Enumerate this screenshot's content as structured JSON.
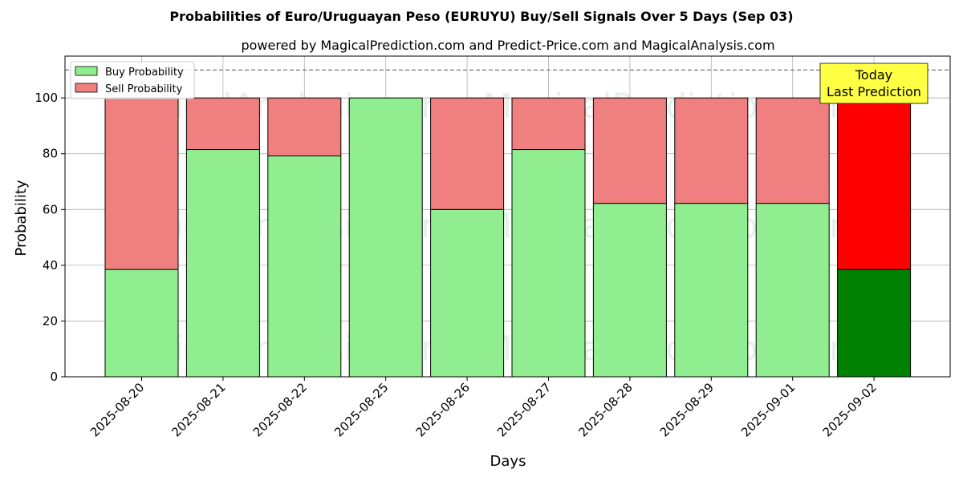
{
  "chart_data": {
    "type": "bar",
    "stacked": true,
    "title": "Probabilities of Euro/Uruguayan Peso (EURUYU) Buy/Sell Signals Over 5 Days (Sep 03)",
    "subtitle": "powered by MagicalPrediction.com and Predict-Price.com and MagicalAnalysis.com",
    "xlabel": "Days",
    "ylabel": "Probability",
    "ylim": [
      0,
      115
    ],
    "yticks": [
      0,
      20,
      40,
      60,
      80,
      100
    ],
    "reference_line": 110,
    "grid": true,
    "legend_position": "top-left",
    "categories": [
      "2025-08-20",
      "2025-08-21",
      "2025-08-22",
      "2025-08-25",
      "2025-08-26",
      "2025-08-27",
      "2025-08-28",
      "2025-08-29",
      "2025-09-01",
      "2025-09-02"
    ],
    "series": [
      {
        "name": "Buy Probability",
        "color": "#90ee90",
        "highlight_color": "#008000",
        "values": [
          38.5,
          81.5,
          79.2,
          100,
          60,
          81.5,
          62.2,
          62.2,
          62.2,
          38.5
        ]
      },
      {
        "name": "Sell Probability",
        "color": "#f08080",
        "highlight_color": "#ff0000",
        "values": [
          61.5,
          18.5,
          20.8,
          0,
          40,
          18.5,
          37.8,
          37.8,
          37.8,
          61.5
        ]
      }
    ],
    "highlight_index": 9,
    "annotation": {
      "line1": "Today",
      "line2": "Last Prediction",
      "color": "#ffff44"
    },
    "watermarks": [
      "MagicalAnalysis.com",
      "MagicalPrediction.com"
    ]
  }
}
